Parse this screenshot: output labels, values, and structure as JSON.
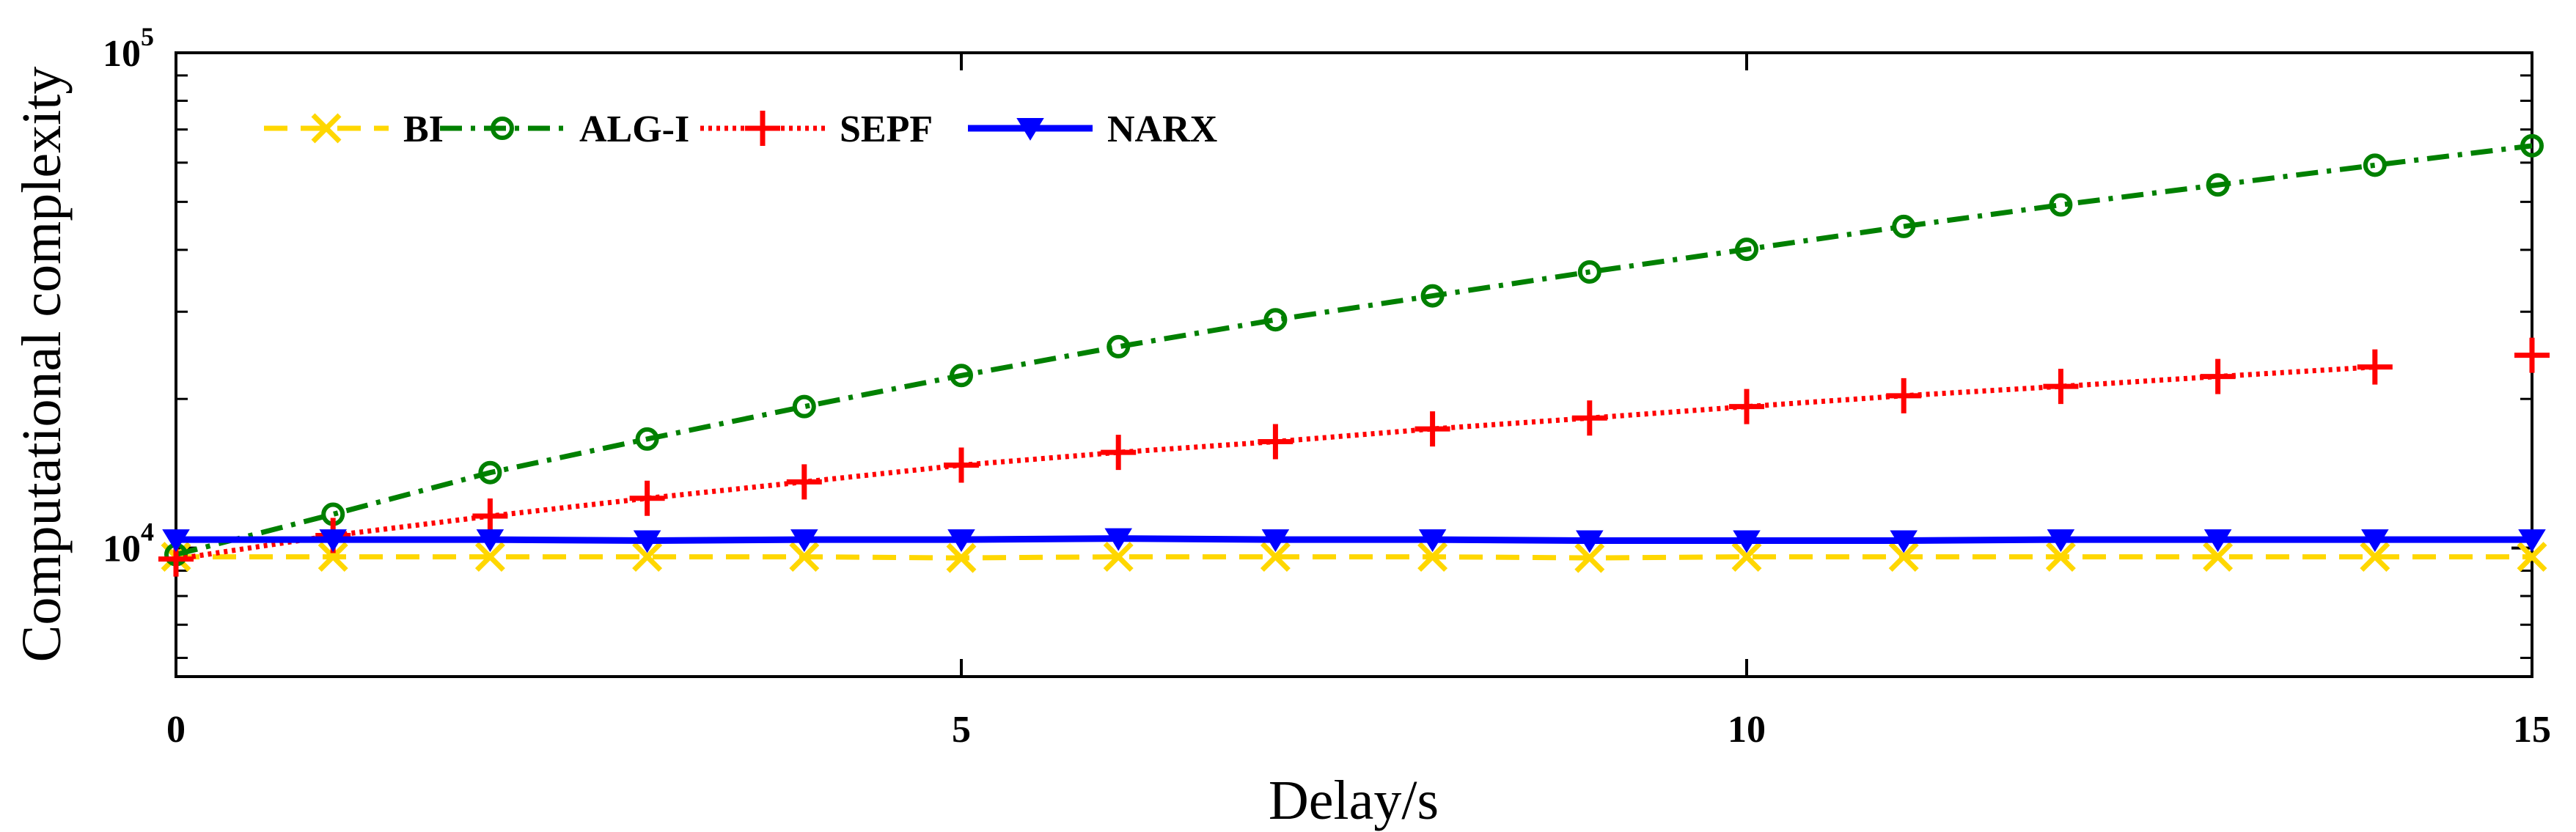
{
  "chart_data": {
    "type": "line",
    "title": "",
    "xlabel": "Delay/s",
    "ylabel": "Computational complexity",
    "xlim": [
      0,
      15
    ],
    "ylim": [
      5500,
      100000
    ],
    "yscale": "log",
    "grid": false,
    "legend_position": "top-left",
    "x_ticks": [
      0,
      5,
      10,
      15
    ],
    "x_tick_labels": [
      "0",
      "5",
      "10",
      "15"
    ],
    "y_major_ticks": [
      {
        "value": 10000,
        "base": "10",
        "exp": "4"
      },
      {
        "value": 100000,
        "base": "10",
        "exp": "5"
      }
    ],
    "y_minor_ticks": [
      6000,
      7000,
      8000,
      9000,
      20000,
      30000,
      40000,
      50000,
      60000,
      70000,
      80000,
      90000
    ],
    "series": [
      {
        "name": "BI",
        "color": "#FFD700",
        "marker": "x",
        "line_style": "dashed",
        "x": [
          0,
          1,
          2,
          3,
          4,
          5,
          6,
          7,
          8,
          9,
          10,
          11,
          12,
          13,
          14,
          15
        ],
        "y": [
          9600,
          9600,
          9600,
          9600,
          9600,
          9550,
          9600,
          9600,
          9600,
          9550,
          9600,
          9600,
          9600,
          9600,
          9600,
          9600
        ]
      },
      {
        "name": "ALG-I",
        "color": "#008000",
        "marker": "circle",
        "line_style": "dashdot",
        "x": [
          0,
          1,
          2,
          3,
          4,
          5,
          6,
          7,
          8,
          9,
          10,
          11,
          12,
          13,
          14,
          15
        ],
        "y": [
          9700,
          11700,
          14200,
          16600,
          19300,
          22300,
          25500,
          28900,
          32300,
          36100,
          40100,
          44600,
          49300,
          54100,
          59300,
          64900
        ]
      },
      {
        "name": "SEPF",
        "color": "#FF0000",
        "marker": "plus",
        "line_style": "dotted",
        "x": [
          0,
          1,
          2,
          3,
          4,
          5,
          6,
          7,
          8,
          9,
          10,
          11,
          12,
          13,
          14,
          15
        ],
        "y": [
          9500,
          10600,
          11600,
          12600,
          13600,
          14700,
          15600,
          16400,
          17400,
          18300,
          19300,
          20300,
          21200,
          22200,
          23200,
          24500
        ],
        "connected_until_index": 14
      },
      {
        "name": "NARX",
        "color": "#0000FF",
        "marker": "triangle-down",
        "line_style": "solid",
        "x": [
          0,
          1,
          2,
          3,
          4,
          5,
          6,
          7,
          8,
          9,
          10,
          11,
          12,
          13,
          14,
          15
        ],
        "y": [
          10400,
          10400,
          10400,
          10350,
          10400,
          10400,
          10450,
          10400,
          10400,
          10350,
          10350,
          10350,
          10400,
          10400,
          10400,
          10400
        ]
      }
    ]
  }
}
